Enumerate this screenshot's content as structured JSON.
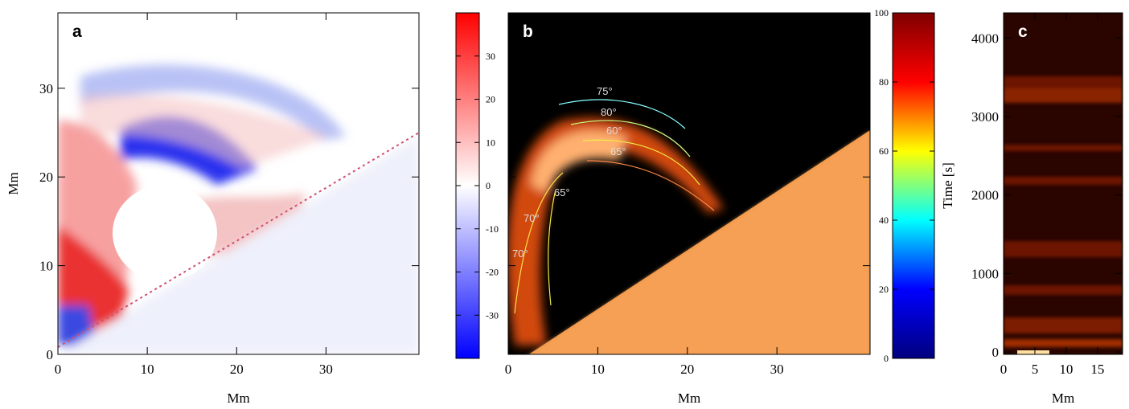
{
  "panels": [
    {
      "type": "image",
      "label": "a",
      "xlabel": "Mm",
      "ylabel": "Mm",
      "xlim": [
        0,
        40.4
      ],
      "ylim": [
        0,
        38.5
      ],
      "xticks": [
        0,
        10,
        20,
        30
      ],
      "yticks": [
        0,
        10,
        20,
        30
      ],
      "ytick_labels": true
    },
    {
      "type": "image",
      "label": "b",
      "xlabel": "Mm",
      "xlim": [
        0,
        40.4
      ],
      "ylim": [
        0,
        38.5
      ],
      "xticks": [
        0,
        10,
        20,
        30
      ],
      "yticks": [
        0,
        10,
        20,
        30
      ],
      "ytick_labels": false,
      "annotations": [
        "75°",
        "80°",
        "60°",
        "65°",
        "65°",
        "70°",
        "70°"
      ]
    },
    {
      "type": "image",
      "label": "c",
      "xlabel": "Mm",
      "xlim": [
        0,
        19
      ],
      "ylim": [
        -30,
        4320
      ],
      "xticks": [
        0,
        5,
        10,
        15
      ],
      "yticks": [
        0,
        1000,
        2000,
        3000,
        4000
      ],
      "ytick_labels": true
    }
  ],
  "colorbars": [
    {
      "ylim": [
        -40,
        40
      ],
      "yticks": [
        -30,
        -20,
        -10,
        0,
        10,
        20,
        30
      ],
      "colors": [
        "#0000ff",
        "#ffffff",
        "#ff0000"
      ]
    },
    {
      "label": "Time [s]",
      "ylim": [
        0,
        100
      ],
      "yticks": [
        0,
        20,
        40,
        60,
        80,
        100
      ],
      "colors": [
        "#00007f",
        "#0000ff",
        "#00ffff",
        "#ffff00",
        "#ff0000",
        "#7f0000"
      ]
    }
  ]
}
